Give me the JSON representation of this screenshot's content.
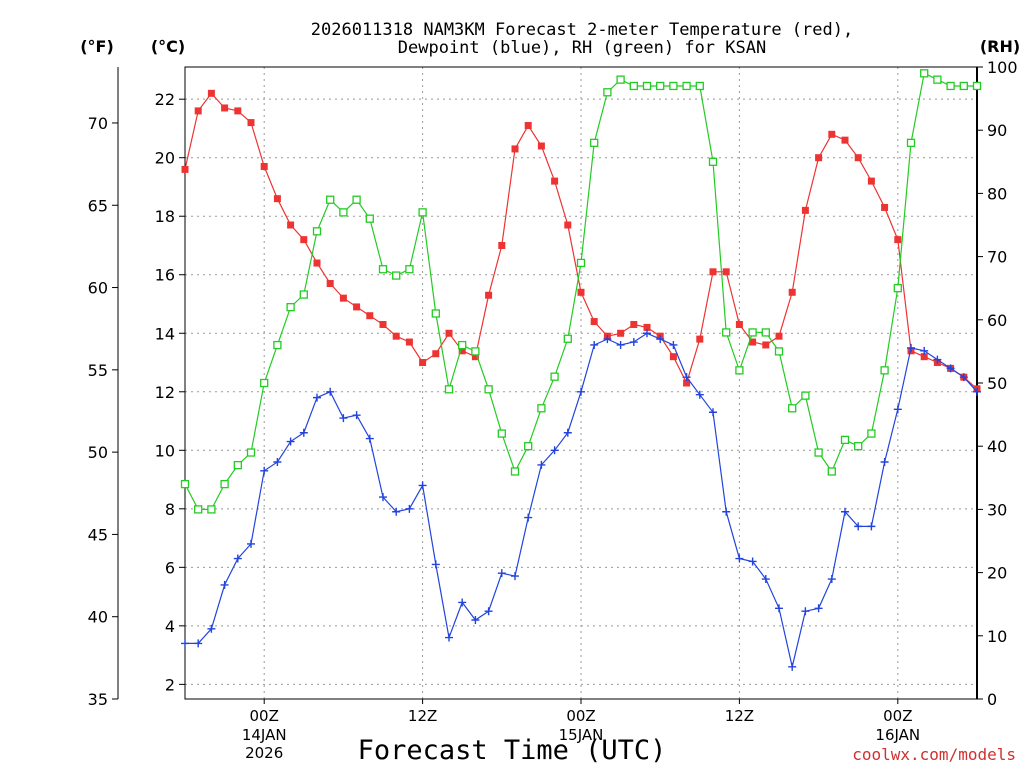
{
  "title_line1": "2026011318 NAM3KM Forecast 2-meter Temperature (red),",
  "title_line2": "Dewpoint (blue), RH (green) for KSAN",
  "unit_f": "(°F)",
  "unit_c": "(°C)",
  "unit_rh": "(RH)",
  "xaxis_title": "Forecast Time (UTC)",
  "credit": "coolwx.com/models",
  "colors": {
    "temp": "#ee3333",
    "dew": "#2244dd",
    "rh": "#22cc22",
    "credit": "#d03030"
  },
  "chart_data": {
    "type": "line",
    "title": "2026011318 NAM3KM Forecast 2-meter Temperature (red), Dewpoint (blue), RH (green) for KSAN",
    "xlabel": "Forecast Time (UTC)",
    "x_hours_from_init": [
      0,
      1,
      2,
      3,
      4,
      5,
      6,
      7,
      8,
      9,
      10,
      11,
      12,
      13,
      14,
      15,
      16,
      17,
      18,
      19,
      20,
      21,
      22,
      23,
      24,
      25,
      26,
      27,
      28,
      29,
      30,
      31,
      32,
      33,
      34,
      35,
      36,
      37,
      38,
      39,
      40,
      41,
      42,
      43,
      44,
      45,
      46,
      47,
      48,
      49,
      50,
      51,
      52,
      53,
      54,
      55,
      56,
      57,
      58,
      59,
      60
    ],
    "x_ticks": [
      {
        "hour": 6,
        "line1": "00Z",
        "line2": "14JAN",
        "line3": "2026"
      },
      {
        "hour": 18,
        "line1": "12Z",
        "line2": "",
        "line3": ""
      },
      {
        "hour": 30,
        "line1": "00Z",
        "line2": "15JAN",
        "line3": ""
      },
      {
        "hour": 42,
        "line1": "12Z",
        "line2": "",
        "line3": ""
      },
      {
        "hour": 54,
        "line1": "00Z",
        "line2": "16JAN",
        "line3": ""
      }
    ],
    "y_left_f": {
      "label": "(°F)",
      "range": [
        35,
        73.4
      ],
      "ticks": [
        "35",
        "40",
        "45",
        "50",
        "55",
        "60",
        "65",
        "70"
      ]
    },
    "y_left_c": {
      "label": "(°C)",
      "range": [
        1.5,
        23.1
      ],
      "ticks": [
        "2",
        "4",
        "6",
        "8",
        "10",
        "12",
        "14",
        "16",
        "18",
        "20",
        "22"
      ]
    },
    "y_right_rh": {
      "label": "(RH)",
      "range": [
        0,
        100
      ],
      "ticks": [
        "0",
        "10",
        "20",
        "30",
        "40",
        "50",
        "60",
        "70",
        "80",
        "90",
        "100"
      ]
    },
    "series": [
      {
        "name": "Temperature",
        "units": "C",
        "values": [
          19.6,
          21.6,
          22.2,
          21.7,
          21.6,
          21.2,
          19.7,
          18.6,
          17.7,
          17.2,
          16.4,
          15.7,
          15.2,
          14.9,
          14.6,
          14.3,
          13.9,
          13.7,
          13.0,
          13.3,
          14.0,
          13.4,
          13.2,
          15.3,
          17.0,
          20.3,
          21.1,
          20.4,
          19.2,
          17.7,
          15.4,
          14.4,
          13.9,
          14.0,
          14.3,
          14.2,
          13.9,
          13.2,
          12.3,
          13.8,
          16.1,
          16.1,
          14.3,
          13.7,
          13.6,
          13.9,
          15.4,
          18.2,
          20.0,
          20.8,
          20.6,
          20.0,
          19.2,
          18.3,
          17.2,
          13.4,
          13.2,
          13.0,
          12.8,
          12.5,
          12.1
        ]
      },
      {
        "name": "Dewpoint",
        "units": "C",
        "values": [
          3.4,
          3.4,
          3.9,
          5.4,
          6.3,
          6.8,
          9.3,
          9.6,
          10.3,
          10.6,
          11.8,
          12.0,
          11.1,
          11.2,
          10.4,
          8.4,
          7.9,
          8.0,
          8.8,
          6.1,
          3.6,
          4.8,
          4.2,
          4.5,
          5.8,
          5.7,
          7.7,
          9.5,
          10.0,
          10.6,
          12.0,
          13.6,
          13.8,
          13.6,
          13.7,
          14.0,
          13.8,
          13.6,
          12.5,
          11.9,
          11.3,
          7.9,
          6.3,
          6.2,
          5.6,
          4.6,
          2.6,
          4.5,
          4.6,
          5.6,
          7.9,
          7.4,
          7.4,
          9.6,
          11.4,
          13.5,
          13.4,
          13.1,
          12.8,
          12.5,
          12.0
        ]
      },
      {
        "name": "RH",
        "units": "%",
        "values": [
          34,
          30,
          30,
          34,
          37,
          39,
          50,
          56,
          62,
          64,
          74,
          79,
          77,
          79,
          76,
          68,
          67,
          68,
          77,
          61,
          49,
          56,
          55,
          49,
          42,
          36,
          40,
          46,
          51,
          57,
          69,
          88,
          96,
          98,
          97,
          97,
          97,
          97,
          97,
          97,
          85,
          58,
          52,
          58,
          58,
          55,
          46,
          48,
          39,
          36,
          41,
          40,
          42,
          52,
          65,
          88,
          99,
          98,
          97,
          97,
          97
        ]
      }
    ]
  }
}
